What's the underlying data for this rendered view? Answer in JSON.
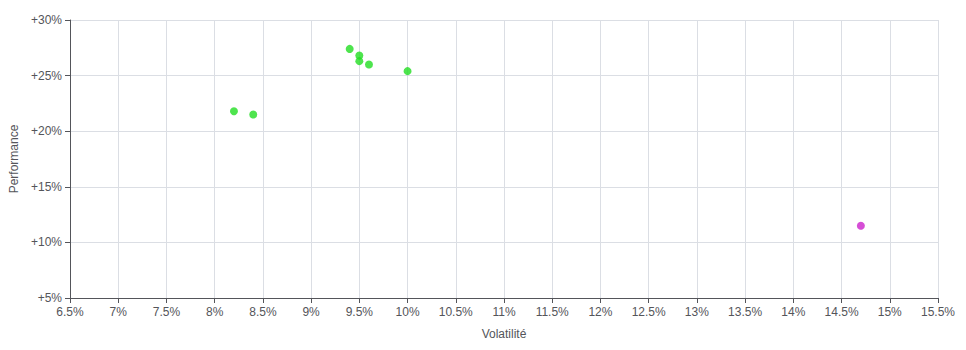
{
  "chart_data": {
    "type": "scatter",
    "xlabel": "Volatilité",
    "ylabel": "Performance",
    "xlim": [
      0.065,
      0.155
    ],
    "ylim": [
      0.05,
      0.3
    ],
    "xticks": [
      {
        "value": 0.065,
        "label": "6.5%"
      },
      {
        "value": 0.07,
        "label": "7%"
      },
      {
        "value": 0.075,
        "label": "7.5%"
      },
      {
        "value": 0.08,
        "label": "8%"
      },
      {
        "value": 0.085,
        "label": "8.5%"
      },
      {
        "value": 0.09,
        "label": "9%"
      },
      {
        "value": 0.095,
        "label": "9.5%"
      },
      {
        "value": 0.1,
        "label": "10%"
      },
      {
        "value": 0.105,
        "label": "10.5%"
      },
      {
        "value": 0.11,
        "label": "11%"
      },
      {
        "value": 0.115,
        "label": "11.5%"
      },
      {
        "value": 0.12,
        "label": "12%"
      },
      {
        "value": 0.125,
        "label": "12.5%"
      },
      {
        "value": 0.13,
        "label": "13%"
      },
      {
        "value": 0.135,
        "label": "13.5%"
      },
      {
        "value": 0.14,
        "label": "14%"
      },
      {
        "value": 0.145,
        "label": "14.5%"
      },
      {
        "value": 0.15,
        "label": "15%"
      },
      {
        "value": 0.155,
        "label": "15.5%"
      }
    ],
    "yticks": [
      {
        "value": 0.05,
        "label": "+5%"
      },
      {
        "value": 0.1,
        "label": "+10%"
      },
      {
        "value": 0.15,
        "label": "+15%"
      },
      {
        "value": 0.2,
        "label": "+20%"
      },
      {
        "value": 0.25,
        "label": "+25%"
      },
      {
        "value": 0.3,
        "label": "+30%"
      }
    ],
    "grid": true,
    "marker": "circle",
    "series": [
      {
        "color": "#22dd22",
        "x": [
          0.094,
          0.095,
          0.095,
          0.096,
          0.1,
          0.082,
          0.084
        ],
        "values": [
          0.274,
          0.268,
          0.263,
          0.26,
          0.254,
          0.218,
          0.215
        ]
      },
      {
        "color": "#cc22cc",
        "x": [
          0.147
        ],
        "values": [
          0.115
        ]
      }
    ]
  }
}
